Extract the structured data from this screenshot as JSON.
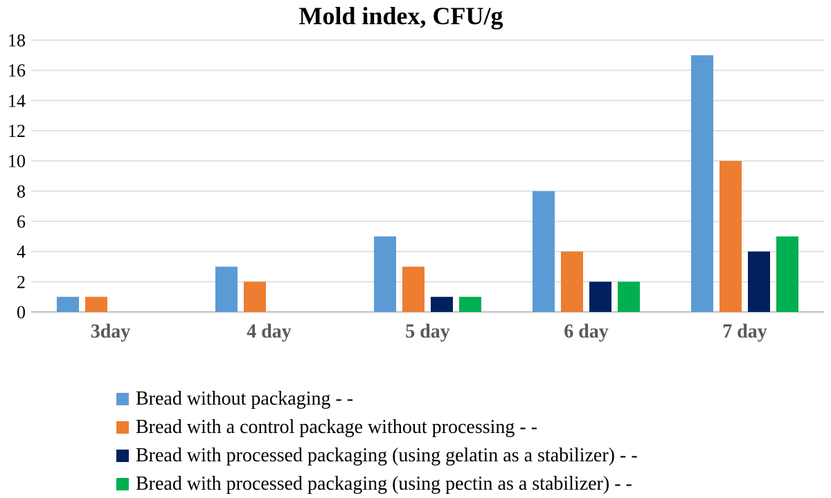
{
  "chart_data": {
    "type": "bar",
    "title": "Mold index, CFU/g",
    "categories": [
      "3day",
      "4 day",
      "5 day",
      "6 day",
      "7 day"
    ],
    "ylim": [
      0,
      18
    ],
    "yticks": [
      0,
      2,
      4,
      6,
      8,
      10,
      12,
      14,
      16,
      18
    ],
    "grid": true,
    "legend_position": "bottom",
    "series": [
      {
        "name": "Bread without packaging - -",
        "color": "#5B9BD5",
        "values": [
          1,
          3,
          5,
          8,
          17
        ]
      },
      {
        "name": "Bread with a control package without processing - -",
        "color": "#ED7D31",
        "values": [
          1,
          2,
          3,
          4,
          10
        ]
      },
      {
        "name": "Bread with processed packaging (using gelatin as a stabilizer) - -",
        "color": "#002060",
        "values": [
          0,
          0,
          1,
          2,
          4
        ]
      },
      {
        "name": "Bread with processed packaging (using pectin as a stabilizer) - -",
        "color": "#00B050",
        "values": [
          0,
          0,
          1,
          2,
          5
        ]
      }
    ]
  }
}
